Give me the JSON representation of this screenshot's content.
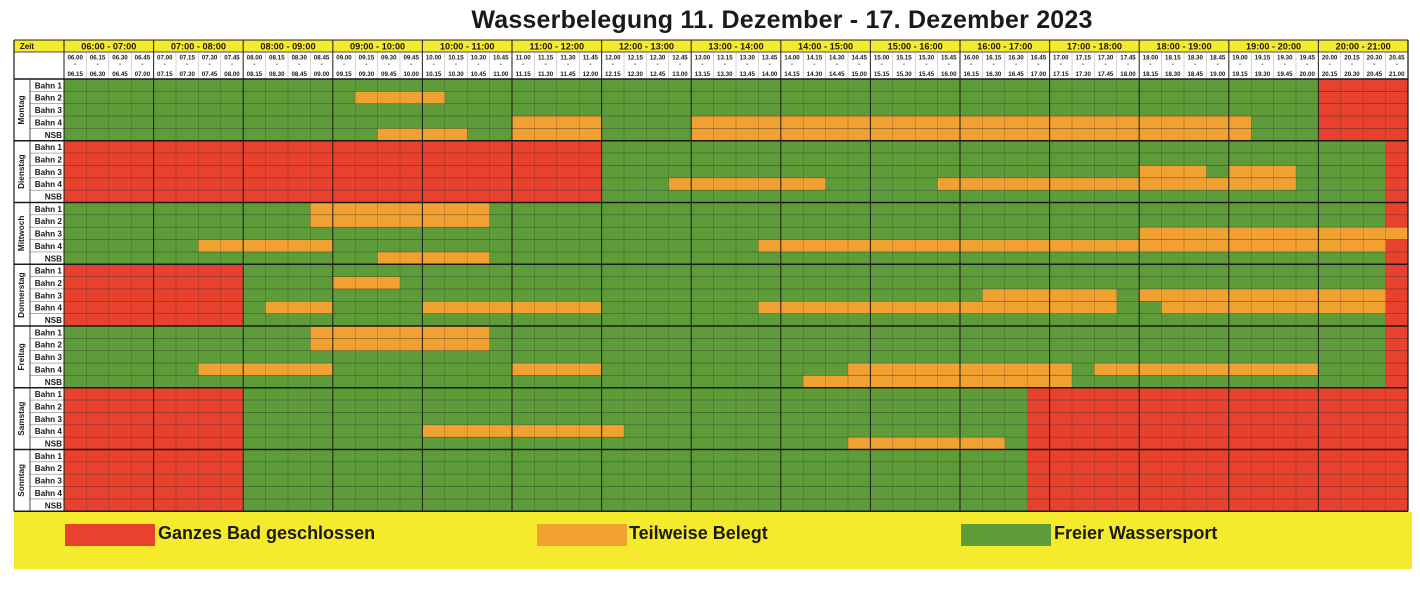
{
  "title": "Wasserbelegung 11. Dezember - 17. Dezember 2023",
  "colors": {
    "closed": "#e8422e",
    "partial": "#f0a132",
    "free": "#5e9c3a",
    "header": "#f5eb2c",
    "grid": "#1a1a1a"
  },
  "legend": [
    {
      "key": "closed",
      "label": "Ganzes Bad geschlossen"
    },
    {
      "key": "partial",
      "label": "Teilweise Belegt"
    },
    {
      "key": "free",
      "label": "Freier Wassersport"
    }
  ],
  "chart_data": {
    "type": "table",
    "corner_label": "Zeit",
    "hours": [
      "06:00 - 07:00",
      "07:00 - 08:00",
      "08:00 - 09:00",
      "09:00 - 10:00",
      "10:00 - 11:00",
      "11:00 - 12:00",
      "12:00 - 13:00",
      "13:00 - 14:00",
      "14:00 - 15:00",
      "15:00 - 16:00",
      "16:00 - 17:00",
      "17:00 - 18:00",
      "18:00 - 19:00",
      "19:00 - 20:00",
      "20:00 - 21:00"
    ],
    "slots": [
      [
        "06.00",
        "06.15"
      ],
      [
        "06.15",
        "06.30"
      ],
      [
        "06.30",
        "06.45"
      ],
      [
        "06.45",
        "07.00"
      ],
      [
        "07.00",
        "07.15"
      ],
      [
        "07.15",
        "07.30"
      ],
      [
        "07.30",
        "07.45"
      ],
      [
        "07.45",
        "08.00"
      ],
      [
        "08.00",
        "08.15"
      ],
      [
        "08.15",
        "08.30"
      ],
      [
        "08.30",
        "08.45"
      ],
      [
        "08.45",
        "09.00"
      ],
      [
        "09.00",
        "09.15"
      ],
      [
        "09.15",
        "09.30"
      ],
      [
        "09.30",
        "09.45"
      ],
      [
        "09.45",
        "10.00"
      ],
      [
        "10.00",
        "10.15"
      ],
      [
        "10.15",
        "10.30"
      ],
      [
        "10.30",
        "10.45"
      ],
      [
        "10.45",
        "11.00"
      ],
      [
        "11.00",
        "11.15"
      ],
      [
        "11.15",
        "11.30"
      ],
      [
        "11.30",
        "11.45"
      ],
      [
        "11.45",
        "12.00"
      ],
      [
        "12.00",
        "12.15"
      ],
      [
        "12.15",
        "12.30"
      ],
      [
        "12.30",
        "12.45"
      ],
      [
        "12.45",
        "13.00"
      ],
      [
        "13.00",
        "13.15"
      ],
      [
        "13.15",
        "13.30"
      ],
      [
        "13.30",
        "13.45"
      ],
      [
        "13.45",
        "14.00"
      ],
      [
        "14.00",
        "14.15"
      ],
      [
        "14.15",
        "14.30"
      ],
      [
        "14.30",
        "14.45"
      ],
      [
        "14.45",
        "15.00"
      ],
      [
        "15.00",
        "15.15"
      ],
      [
        "15.15",
        "15.30"
      ],
      [
        "15.30",
        "15.45"
      ],
      [
        "15.45",
        "16.00"
      ],
      [
        "16.00",
        "16.15"
      ],
      [
        "16.15",
        "16.30"
      ],
      [
        "16.30",
        "16.45"
      ],
      [
        "16.45",
        "17.00"
      ],
      [
        "17.00",
        "17.15"
      ],
      [
        "17.15",
        "17.30"
      ],
      [
        "17.30",
        "17.45"
      ],
      [
        "17.45",
        "18.00"
      ],
      [
        "18.00",
        "18.15"
      ],
      [
        "18.15",
        "18.30"
      ],
      [
        "18.30",
        "18.45"
      ],
      [
        "18.45",
        "19.00"
      ],
      [
        "19.00",
        "19.15"
      ],
      [
        "19.15",
        "19.30"
      ],
      [
        "19.30",
        "19.45"
      ],
      [
        "19.45",
        "20.00"
      ],
      [
        "20.00",
        "20.15"
      ],
      [
        "20.15",
        "20.30"
      ],
      [
        "20.30",
        "20.45"
      ],
      [
        "20.45",
        "21.00"
      ]
    ],
    "lanes": [
      "Bahn 1",
      "Bahn 2",
      "Bahn 3",
      "Bahn 4",
      "NSB"
    ],
    "days": [
      {
        "name": "Montag",
        "lanes": [
          [
            [
              "free",
              0,
              60
            ]
          ],
          [
            [
              "free",
              0,
              60
            ]
          ],
          [
            [
              "free",
              0,
              60
            ]
          ],
          [
            [
              "free",
              0,
              60
            ]
          ],
          [
            [
              "free",
              0,
              60
            ]
          ]
        ],
        "overrides": [
          [
            "partial",
            1,
            1,
            13,
            17
          ],
          [
            "partial",
            3,
            3,
            20,
            24
          ],
          [
            "partial",
            3,
            3,
            28,
            53
          ],
          [
            "partial",
            4,
            4,
            14,
            18
          ],
          [
            "partial",
            4,
            4,
            20,
            24
          ],
          [
            "partial",
            4,
            4,
            28,
            53
          ],
          [
            "closed",
            0,
            2,
            56,
            60
          ],
          [
            "closed",
            3,
            4,
            56,
            60
          ]
        ]
      },
      {
        "name": "Dienstag",
        "lanes": [
          [
            [
              "closed",
              0,
              24
            ],
            [
              "free",
              24,
              59
            ],
            [
              "closed",
              59,
              60
            ]
          ],
          [
            [
              "closed",
              0,
              24
            ],
            [
              "free",
              24,
              59
            ],
            [
              "closed",
              59,
              60
            ]
          ],
          [
            [
              "closed",
              0,
              24
            ],
            [
              "free",
              24,
              59
            ],
            [
              "closed",
              59,
              60
            ]
          ],
          [
            [
              "closed",
              0,
              24
            ],
            [
              "free",
              24,
              59
            ],
            [
              "closed",
              59,
              60
            ]
          ],
          [
            [
              "closed",
              0,
              24
            ],
            [
              "free",
              24,
              59
            ],
            [
              "closed",
              59,
              60
            ]
          ]
        ],
        "overrides": [
          [
            "partial",
            3,
            3,
            27,
            34
          ],
          [
            "partial",
            3,
            3,
            39,
            51
          ],
          [
            "partial",
            2,
            2,
            48,
            51
          ],
          [
            "partial",
            3,
            3,
            48,
            55
          ],
          [
            "partial",
            2,
            2,
            52,
            55
          ]
        ]
      },
      {
        "name": "Mittwoch",
        "lanes": [
          [
            [
              "free",
              0,
              59
            ],
            [
              "closed",
              59,
              60
            ]
          ],
          [
            [
              "free",
              0,
              59
            ],
            [
              "closed",
              59,
              60
            ]
          ],
          [
            [
              "free",
              0,
              59
            ],
            [
              "closed",
              59,
              60
            ]
          ],
          [
            [
              "free",
              0,
              59
            ],
            [
              "closed",
              59,
              60
            ]
          ],
          [
            [
              "free",
              0,
              59
            ],
            [
              "closed",
              59,
              60
            ]
          ]
        ],
        "overrides": [
          [
            "partial",
            0,
            1,
            11,
            19
          ],
          [
            "partial",
            2,
            2,
            48,
            60
          ],
          [
            "partial",
            3,
            3,
            6,
            12
          ],
          [
            "partial",
            3,
            3,
            31,
            56
          ],
          [
            "partial",
            4,
            4,
            14,
            19
          ],
          [
            "partial",
            3,
            3,
            56,
            59
          ]
        ]
      },
      {
        "name": "Donnerstag",
        "lanes": [
          [
            [
              "closed",
              0,
              8
            ],
            [
              "free",
              8,
              59
            ],
            [
              "closed",
              59,
              60
            ]
          ],
          [
            [
              "closed",
              0,
              8
            ],
            [
              "free",
              8,
              59
            ],
            [
              "closed",
              59,
              60
            ]
          ],
          [
            [
              "closed",
              0,
              8
            ],
            [
              "free",
              8,
              59
            ],
            [
              "closed",
              59,
              60
            ]
          ],
          [
            [
              "closed",
              0,
              8
            ],
            [
              "free",
              8,
              59
            ],
            [
              "closed",
              59,
              60
            ]
          ],
          [
            [
              "closed",
              0,
              8
            ],
            [
              "free",
              8,
              59
            ],
            [
              "closed",
              59,
              60
            ]
          ]
        ],
        "overrides": [
          [
            "partial",
            1,
            1,
            12,
            15
          ],
          [
            "partial",
            2,
            2,
            41,
            47
          ],
          [
            "partial",
            2,
            2,
            48,
            59
          ],
          [
            "partial",
            3,
            3,
            9,
            12
          ],
          [
            "partial",
            3,
            3,
            16,
            24
          ],
          [
            "partial",
            3,
            3,
            31,
            47
          ],
          [
            "partial",
            3,
            3,
            49,
            59
          ]
        ]
      },
      {
        "name": "Freitag",
        "lanes": [
          [
            [
              "free",
              0,
              59
            ],
            [
              "closed",
              59,
              60
            ]
          ],
          [
            [
              "free",
              0,
              59
            ],
            [
              "closed",
              59,
              60
            ]
          ],
          [
            [
              "free",
              0,
              59
            ],
            [
              "closed",
              59,
              60
            ]
          ],
          [
            [
              "free",
              0,
              59
            ],
            [
              "closed",
              59,
              60
            ]
          ],
          [
            [
              "free",
              0,
              59
            ],
            [
              "closed",
              59,
              60
            ]
          ]
        ],
        "overrides": [
          [
            "partial",
            0,
            1,
            11,
            19
          ],
          [
            "partial",
            3,
            3,
            6,
            12
          ],
          [
            "partial",
            3,
            3,
            20,
            24
          ],
          [
            "partial",
            3,
            3,
            35,
            45
          ],
          [
            "partial",
            3,
            3,
            46,
            56
          ],
          [
            "partial",
            4,
            4,
            33,
            45
          ]
        ]
      },
      {
        "name": "Samstag",
        "lanes": [
          [
            [
              "closed",
              0,
              8
            ],
            [
              "free",
              8,
              43
            ],
            [
              "closed",
              43,
              60
            ]
          ],
          [
            [
              "closed",
              0,
              8
            ],
            [
              "free",
              8,
              43
            ],
            [
              "closed",
              43,
              60
            ]
          ],
          [
            [
              "closed",
              0,
              8
            ],
            [
              "free",
              8,
              43
            ],
            [
              "closed",
              43,
              60
            ]
          ],
          [
            [
              "closed",
              0,
              8
            ],
            [
              "free",
              8,
              43
            ],
            [
              "closed",
              43,
              60
            ]
          ],
          [
            [
              "closed",
              0,
              8
            ],
            [
              "free",
              8,
              43
            ],
            [
              "closed",
              43,
              60
            ]
          ]
        ],
        "overrides": [
          [
            "partial",
            3,
            3,
            16,
            25
          ],
          [
            "partial",
            4,
            4,
            35,
            42
          ]
        ]
      },
      {
        "name": "Sonntag",
        "lanes": [
          [
            [
              "closed",
              0,
              8
            ],
            [
              "free",
              8,
              43
            ],
            [
              "closed",
              43,
              60
            ]
          ],
          [
            [
              "closed",
              0,
              8
            ],
            [
              "free",
              8,
              43
            ],
            [
              "closed",
              43,
              60
            ]
          ],
          [
            [
              "closed",
              0,
              8
            ],
            [
              "free",
              8,
              43
            ],
            [
              "closed",
              43,
              60
            ]
          ],
          [
            [
              "closed",
              0,
              8
            ],
            [
              "free",
              8,
              43
            ],
            [
              "closed",
              43,
              60
            ]
          ],
          [
            [
              "closed",
              0,
              8
            ],
            [
              "free",
              8,
              43
            ],
            [
              "closed",
              43,
              60
            ]
          ]
        ],
        "overrides": []
      }
    ]
  }
}
